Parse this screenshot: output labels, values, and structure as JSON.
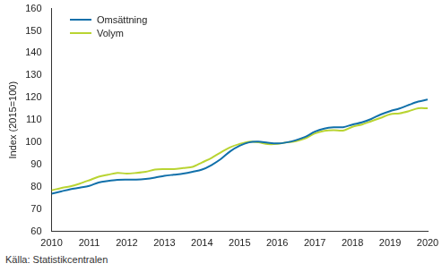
{
  "chart_data": {
    "type": "line",
    "y_label": "Index (2015=100)",
    "source": "Källa: Statistikcentralen",
    "x": [
      2010,
      2010.25,
      2010.5,
      2010.75,
      2011,
      2011.25,
      2011.5,
      2011.75,
      2012,
      2012.25,
      2012.5,
      2012.75,
      2013,
      2013.25,
      2013.5,
      2013.75,
      2014,
      2014.25,
      2014.5,
      2014.75,
      2015,
      2015.25,
      2015.5,
      2015.75,
      2016,
      2016.25,
      2016.5,
      2016.75,
      2017,
      2017.25,
      2017.5,
      2017.75,
      2018,
      2018.25,
      2018.5,
      2018.75,
      2019,
      2019.25,
      2019.5,
      2019.75,
      2020
    ],
    "series": [
      {
        "name": "Omsättning",
        "color": "#1170aa",
        "values": [
          77,
          78,
          79,
          79.7,
          80.5,
          82,
          82.7,
          83.2,
          83.3,
          83.3,
          83.6,
          84.2,
          85,
          85.5,
          86,
          86.8,
          87.8,
          89.8,
          92.5,
          96,
          98.5,
          100,
          100.3,
          99.8,
          99.5,
          100,
          101,
          102.5,
          104.8,
          106.2,
          106.8,
          106.8,
          108,
          109,
          110.5,
          112.5,
          114,
          115.2,
          116.8,
          118.3,
          119.2
        ]
      },
      {
        "name": "Volym",
        "color": "#b9d432",
        "values": [
          78.5,
          79.5,
          80.3,
          81.5,
          83,
          84.6,
          85.5,
          86.3,
          86,
          86.3,
          86.8,
          87.8,
          88,
          88,
          88.5,
          89,
          91,
          93,
          95.5,
          97.8,
          99.3,
          100.3,
          100,
          99.2,
          99.3,
          100,
          100.5,
          101.8,
          104,
          105.2,
          105.5,
          105.3,
          107,
          108,
          109.5,
          111,
          112.6,
          113,
          114,
          115.3,
          115.3
        ]
      }
    ],
    "xlim": [
      2010,
      2020
    ],
    "xticks": [
      2010,
      2011,
      2012,
      2013,
      2014,
      2015,
      2016,
      2017,
      2018,
      2019,
      2020
    ],
    "ylim": [
      60,
      160
    ],
    "yticks": [
      60,
      70,
      80,
      90,
      100,
      110,
      120,
      130,
      140,
      150,
      160
    ],
    "grid": false,
    "legend": "top-left"
  }
}
